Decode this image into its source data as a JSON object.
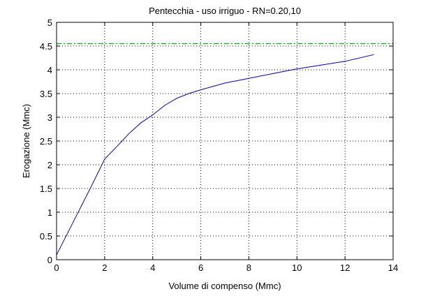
{
  "chart_data": {
    "type": "line",
    "title": "Pentecchia  -  uso irriguo  -   RN=0.20,10",
    "xlabel": "Volume di compenso (Mmc)",
    "ylabel": "Erogazione (Mmc)",
    "xlim": [
      0,
      14
    ],
    "ylim": [
      0,
      5
    ],
    "xticks": [
      0,
      2,
      4,
      6,
      8,
      10,
      12,
      14
    ],
    "yticks": [
      0,
      0.5,
      1,
      1.5,
      2,
      2.5,
      3,
      3.5,
      4,
      4.5,
      5
    ],
    "xtick_labels": [
      "0",
      "2",
      "4",
      "6",
      "8",
      "10",
      "12",
      "14"
    ],
    "ytick_labels": [
      "0",
      "0.5",
      "1",
      "1.5",
      "2",
      "2.5",
      "3",
      "3.5",
      "4",
      "4.5",
      "5"
    ],
    "grid": true,
    "series": [
      {
        "color": "#0000a8",
        "style": "solid",
        "x": [
          0,
          0.5,
          1.0,
          1.5,
          2.0,
          2.5,
          3.0,
          3.5,
          4.0,
          4.5,
          5.0,
          5.5,
          6.0,
          7.0,
          8.0,
          9.0,
          10.0,
          11.0,
          12.0,
          13.2
        ],
        "y": [
          0.1,
          0.6,
          1.1,
          1.6,
          2.12,
          2.38,
          2.65,
          2.88,
          3.05,
          3.25,
          3.4,
          3.5,
          3.58,
          3.72,
          3.82,
          3.92,
          4.02,
          4.1,
          4.18,
          4.32
        ]
      },
      {
        "color": "#008000",
        "style": "dash-dot",
        "x": [
          0,
          14
        ],
        "y": [
          4.55,
          4.55
        ]
      }
    ]
  }
}
